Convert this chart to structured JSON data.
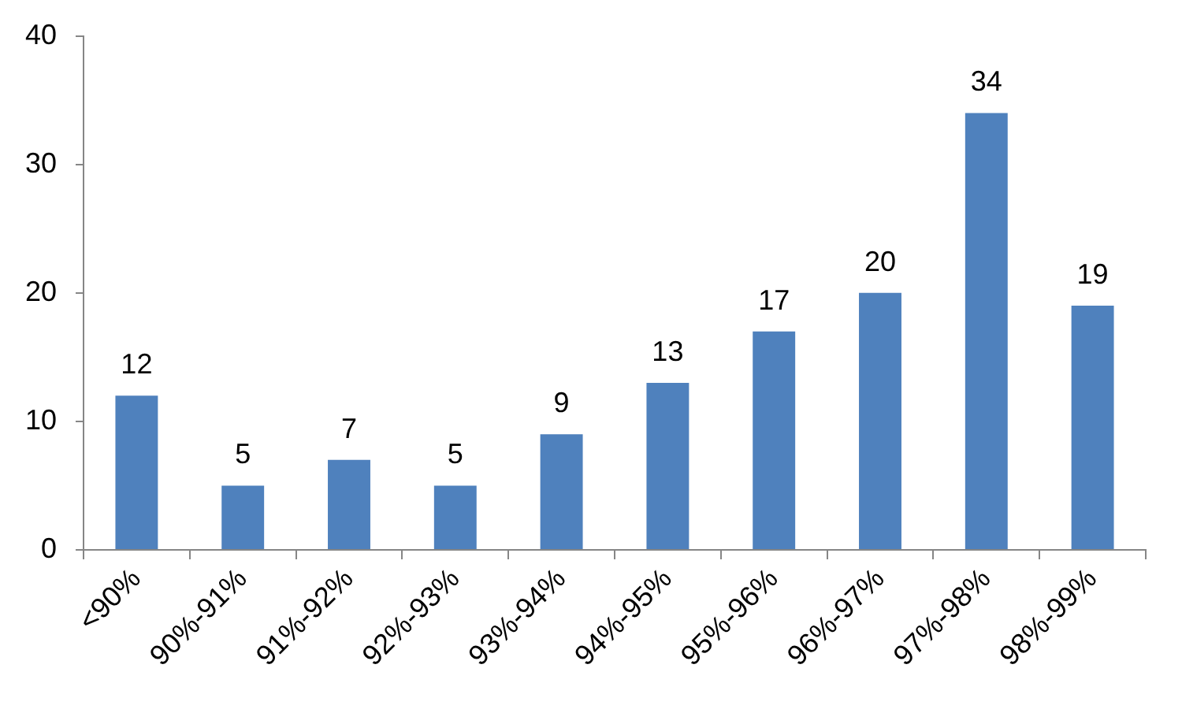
{
  "chart_data": {
    "type": "bar",
    "categories": [
      "<90%",
      "90%-91%",
      "91%-92%",
      "92%-93%",
      "93%-94%",
      "94%-95%",
      "95%-96%",
      "96%-97%",
      "97%-98%",
      "98%-99%"
    ],
    "values": [
      12,
      5,
      7,
      5,
      9,
      13,
      17,
      20,
      34,
      19
    ],
    "color": "#4f81bd",
    "ylim": [
      0,
      40
    ],
    "yticks": [
      0,
      10,
      20,
      30,
      40
    ],
    "data_labels": true
  }
}
